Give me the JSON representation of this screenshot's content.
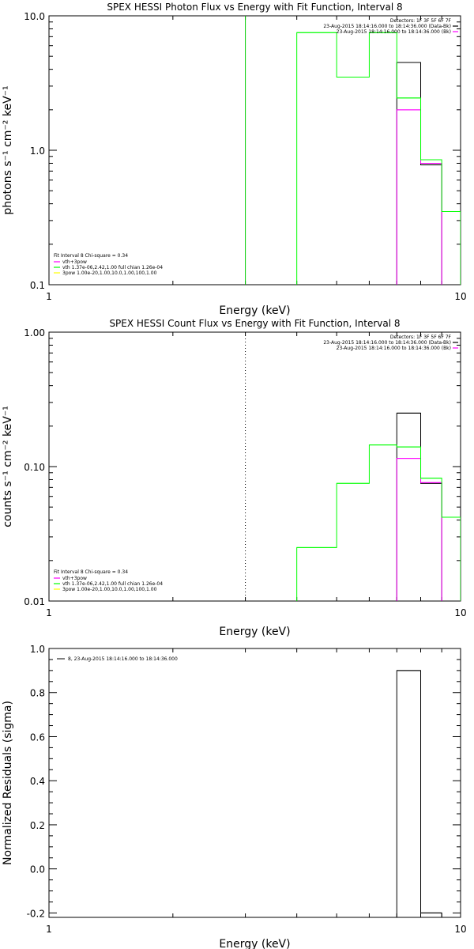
{
  "figure": {
    "colors": {
      "axes": "#000000",
      "total": "#000000",
      "model": "#FF00FF",
      "vth": "#00FF00",
      "pow": "#FFFF00",
      "edge": "#00CC00"
    }
  },
  "chart_data": [
    {
      "id": "photon",
      "type": "line",
      "step": true,
      "title": "SPEX HESSI Photon Flux vs Energy with Fit Function, Interval 8",
      "xlabel": "Energy (keV)",
      "ylabel": "photons s⁻¹ cm⁻² keV⁻¹",
      "xscale": "log",
      "yscale": "log",
      "xlim": [
        1,
        10
      ],
      "ylim": [
        0.1,
        10
      ],
      "xticks": [
        {
          "v": 1,
          "label": "1"
        },
        {
          "v": 10,
          "label": "10"
        }
      ],
      "yticks": [
        {
          "v": 0.1,
          "label": "0.1"
        },
        {
          "v": 1,
          "label": "1.0"
        },
        {
          "v": 10,
          "label": "10.0"
        }
      ],
      "vline": {
        "x": 3.0,
        "style": "solid",
        "color": "#00CC00"
      },
      "info": [
        "Detectors: 1F 3F 5F 6F 7F",
        "23-Aug-2015 18:14:16.000 to 18:14:36.000 (Data-Bk)",
        "23-Aug-2015 18:14:16.000 to 18:14:36.000 (Bk)"
      ],
      "legend_title": "Fit Interval  8    Chi-square = 0.34",
      "legend": [
        "vth+3pow",
        "vth 1.37e-06,2.42,1.00  full chian 1.26e-04",
        "3pow 1.00e-20,1.00,10.0,1.00,100,1.00"
      ],
      "series": [
        {
          "name": "23-Aug-2015 18:14:16.000 to 18:14:36.000 (Data-Bk)",
          "color": "#000000",
          "edges": [
            7.0,
            8.0,
            9.0
          ],
          "values": [
            4.5,
            0.78
          ]
        },
        {
          "name": "23-Aug-2015 18:14:16.000 to 18:14:36.000 (Bk)",
          "color": "#FF00FF",
          "edges": [
            7.0,
            8.0,
            9.0
          ],
          "values": [
            2.0,
            0.8
          ]
        },
        {
          "name": "vth",
          "color": "#00FF00",
          "edges": [
            4.0,
            5.0,
            6.0,
            7.0,
            8.0,
            9.0,
            10.0
          ],
          "values": [
            7.5,
            3.5,
            7.5,
            2.45,
            0.85,
            0.35
          ]
        }
      ]
    },
    {
      "id": "count",
      "type": "line",
      "step": true,
      "title": "SPEX HESSI Count Flux vs Energy with Fit Function, Interval 8",
      "xlabel": "Energy (keV)",
      "ylabel": "counts s⁻¹ cm⁻² keV⁻¹",
      "xscale": "log",
      "yscale": "log",
      "xlim": [
        1,
        10
      ],
      "ylim": [
        0.01,
        1
      ],
      "xticks": [
        {
          "v": 1,
          "label": "1"
        },
        {
          "v": 10,
          "label": "10"
        }
      ],
      "yticks": [
        {
          "v": 0.01,
          "label": "0.01"
        },
        {
          "v": 0.1,
          "label": "0.10"
        },
        {
          "v": 1,
          "label": "1.00"
        }
      ],
      "vline": {
        "x": 3.0,
        "style": "dotted",
        "color": "#000000"
      },
      "info": [
        "Detectors: 1F 3F 5F 6F 7F",
        "23-Aug-2015 18:14:16.000 to 18:14:36.000 (Data-Bk)",
        "23-Aug-2015 18:14:16.000 to 18:14:36.000 (Bk)"
      ],
      "legend_title": "Fit Interval  8    Chi-square = 0.34",
      "legend": [
        "vth+3pow",
        "vth 1.37e-06,2.42,1.00  full chian 1.26e-04",
        "3pow 1.00e-20,1.00,10.0,1.00,100,1.00"
      ],
      "series": [
        {
          "name": "23-Aug-2015 18:14:16.000 to 18:14:36.000 (Data-Bk)",
          "color": "#000000",
          "edges": [
            7.0,
            8.0,
            9.0
          ],
          "values": [
            0.25,
            0.075
          ]
        },
        {
          "name": "23-Aug-2015 18:14:16.000 to 18:14:36.000 (Bk)",
          "color": "#FF00FF",
          "edges": [
            7.0,
            8.0,
            9.0
          ],
          "values": [
            0.115,
            0.076
          ]
        },
        {
          "name": "vth",
          "color": "#00FF00",
          "edges": [
            4.0,
            5.0,
            6.0,
            7.0,
            8.0,
            9.0,
            10.0
          ],
          "values": [
            0.025,
            0.075,
            0.145,
            0.14,
            0.082,
            0.042
          ]
        }
      ]
    },
    {
      "id": "resid",
      "type": "bar",
      "step": true,
      "title": "",
      "xlabel": "Energy (keV)",
      "ylabel": "Normalized Residuals (sigma)",
      "xscale": "log",
      "yscale": "linear",
      "xlim": [
        1,
        10
      ],
      "ylim": [
        -0.22,
        1.0
      ],
      "xticks": [
        {
          "v": 1,
          "label": "1"
        },
        {
          "v": 10,
          "label": "10"
        }
      ],
      "yticks": [
        {
          "v": -0.2,
          "label": "-0.2"
        },
        {
          "v": 0.0,
          "label": "0.0"
        },
        {
          "v": 0.2,
          "label": "0.2"
        },
        {
          "v": 0.4,
          "label": "0.4"
        },
        {
          "v": 0.6,
          "label": "0.6"
        },
        {
          "v": 0.8,
          "label": "0.8"
        },
        {
          "v": 1.0,
          "label": "1.0"
        }
      ],
      "legend_title": "",
      "legend": [
        "8, 23-Aug-2015 18:14:16.000 to 18:14:36.000"
      ],
      "series": [
        {
          "name": "8, 23-Aug-2015 18:14:16.000 to 18:14:36.000",
          "color": "#000000",
          "edges": [
            7.0,
            8.0,
            9.0
          ],
          "values": [
            0.9,
            -0.2
          ]
        }
      ]
    }
  ]
}
